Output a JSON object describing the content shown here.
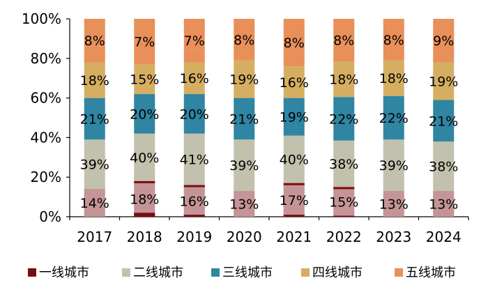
{
  "chart_data": {
    "type": "bar",
    "stacked": true,
    "categories": [
      "2017",
      "2018",
      "2019",
      "2020",
      "2021",
      "2022",
      "2023",
      "2024"
    ],
    "ylim": [
      0,
      100
    ],
    "yticks": [
      "0%",
      "20%",
      "40%",
      "60%",
      "80%",
      "100%"
    ],
    "legend_position": "bottom",
    "series": [
      {
        "name": "一线城市",
        "color": "#7a0c10",
        "values": [
          0,
          2,
          1,
          0,
          1,
          0.5,
          0,
          0
        ]
      },
      {
        "name": "二线城市",
        "color": "#c2c1ad",
        "values": [
          39,
          40,
          41,
          39,
          40,
          38,
          39,
          38
        ]
      },
      {
        "name": "三线城市",
        "color": "#2f85a2",
        "values": [
          21,
          20,
          20,
          21,
          19,
          22,
          22,
          21
        ]
      },
      {
        "name": "四线城市",
        "color": "#d6ae62",
        "values": [
          18,
          15,
          16,
          19,
          16,
          18,
          18,
          19
        ]
      },
      {
        "name": "五线城市",
        "color": "#e88f5a",
        "values": [
          8,
          7,
          7,
          8,
          8,
          8,
          8,
          9
        ]
      }
    ],
    "overlay": {
      "color": "#c68c92",
      "values": [
        14,
        18,
        16,
        13,
        17,
        15,
        13,
        13
      ]
    },
    "data_labels": {
      "overlay": [
        "14%",
        "18%",
        "16%",
        "13%",
        "17%",
        "15%",
        "13%",
        "13%"
      ],
      "二线城市": [
        "39%",
        "40%",
        "41%",
        "39%",
        "40%",
        "38%",
        "39%",
        "38%"
      ],
      "三线城市": [
        "21%",
        "20%",
        "20%",
        "21%",
        "19%",
        "22%",
        "22%",
        "21%"
      ],
      "四线城市": [
        "18%",
        "15%",
        "16%",
        "19%",
        "16%",
        "18%",
        "18%",
        "19%"
      ],
      "五线城市": [
        "8%",
        "7%",
        "7%",
        "8%",
        "8%",
        "8%",
        "8%",
        "9%"
      ]
    }
  }
}
